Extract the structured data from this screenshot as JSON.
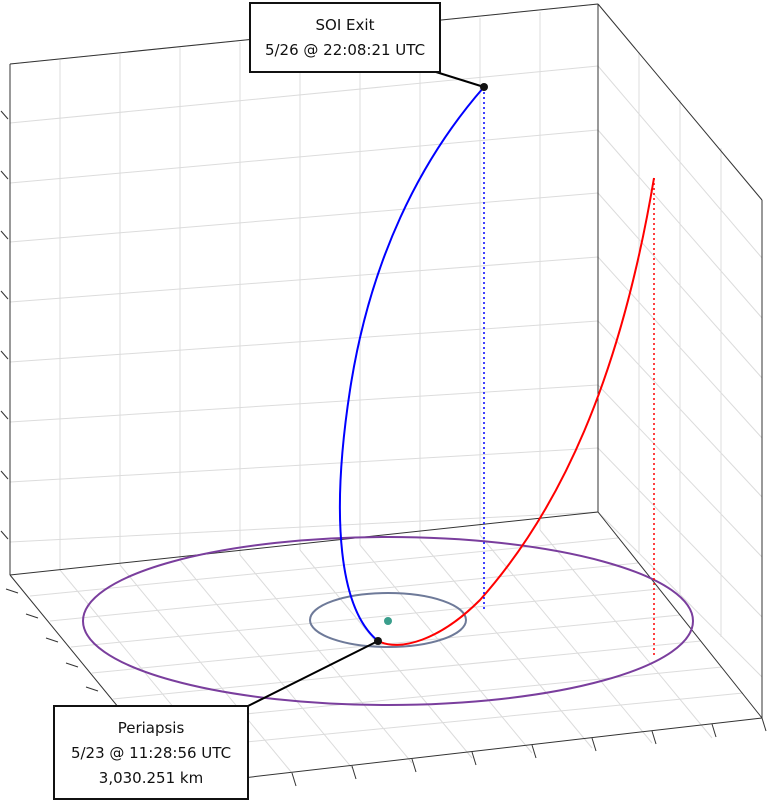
{
  "annotations": {
    "soi_exit": {
      "title": "SOI Exit",
      "time": "5/26 @ 22:08:21 UTC"
    },
    "periapsis": {
      "title": "Periapsis",
      "time": "5/23 @ 11:28:56 UTC",
      "distance": "3,030.251 km"
    }
  },
  "legend": [],
  "colors": {
    "outbound_trajectory": "#0000ff",
    "inbound_trajectory": "#ff0000",
    "outer_orbit": "#7a3e9d",
    "inner_orbit": "#6e7a99",
    "central_body": "#3a9e8c",
    "grid": "#dcdcdc",
    "box_edges": "#333333"
  },
  "markers": [
    {
      "name": "soi-exit-point",
      "shape": "dot"
    },
    {
      "name": "periapsis-point",
      "shape": "dot"
    },
    {
      "name": "central-body",
      "shape": "dot"
    }
  ]
}
